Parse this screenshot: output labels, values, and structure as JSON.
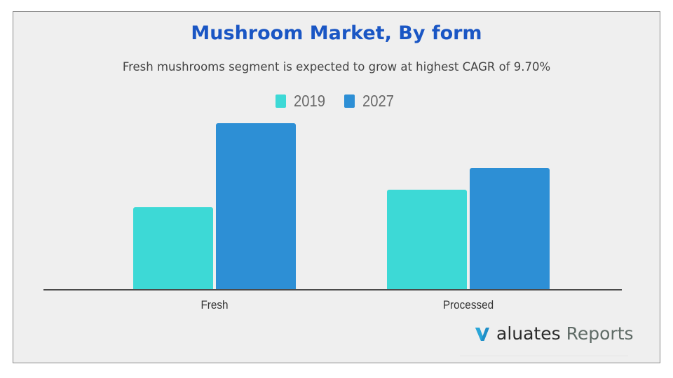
{
  "header": {
    "title": "Mushroom Market, By form",
    "subtitle": "Fresh mushrooms segment is expected to grow at highest CAGR of 9.70%"
  },
  "legend": [
    {
      "label": "2019",
      "color": "#3dd9d6"
    },
    {
      "label": "2027",
      "color": "#2d8fd5"
    }
  ],
  "categories": [
    {
      "label": "Fresh"
    },
    {
      "label": "Processed"
    }
  ],
  "logo": {
    "mark": "V",
    "word1": "aluates",
    "word2": "Reports",
    "mark_color": "#1f8fc8"
  },
  "colors": {
    "title": "#1a56c4",
    "background": "#efefef",
    "series_2019": "#3dd9d6",
    "series_2027": "#2d8fd5",
    "axis": "#4a4a4a"
  },
  "chart_data": {
    "type": "bar",
    "title": "Mushroom Market, By form",
    "subtitle": "Fresh mushrooms segment is expected to grow at highest CAGR of 9.70%",
    "categories": [
      "Fresh",
      "Processed"
    ],
    "series": [
      {
        "name": "2019",
        "color": "#3dd9d6",
        "values": [
          118,
          143
        ]
      },
      {
        "name": "2027",
        "color": "#2d8fd5",
        "values": [
          238,
          174
        ]
      }
    ],
    "value_units": "relative (no y-axis shown; values are proportional bar heights)",
    "xlabel": "",
    "ylabel": "",
    "ylim": [
      0,
      250
    ],
    "grid": false,
    "legend_position": "top-center",
    "annotations": [
      "CAGR of 9.70% for Fresh segment"
    ]
  }
}
